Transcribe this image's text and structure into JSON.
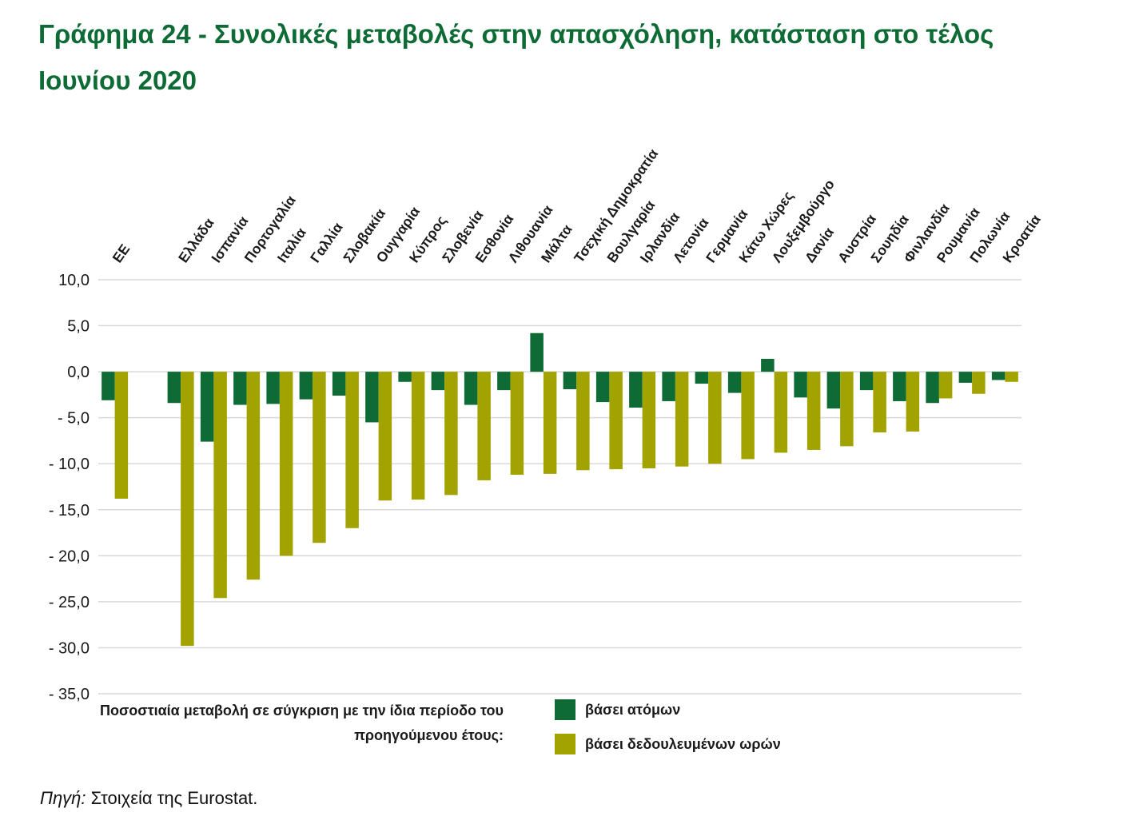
{
  "title": "Γράφημα 24 - Συνολικές μεταβολές στην απασχόληση, κατάσταση στο τέλος Ιουνίου 2020",
  "note": "Ποσοστιαία μεταβολή σε σύγκριση με την ίδια περίοδο του προηγούμενου έτους:",
  "source": {
    "label": "Πηγή:",
    "text": " Στοιχεία της Eurostat."
  },
  "colors": {
    "persons": "#0e6b35",
    "hours": "#a3a300",
    "title": "#0e6b35",
    "grid": "#d9d9d9"
  },
  "chart_data": {
    "type": "bar",
    "title": "Γράφημα 24 - Συνολικές μεταβολές στην απασχόληση, κατάσταση στο τέλος Ιουνίου 2020",
    "categories": [
      "ΕΕ",
      "Ελλάδα",
      "Ισπανία",
      "Πορτογαλία",
      "Ιταλία",
      "Γαλλία",
      "Σλοβακία",
      "Ουγγαρία",
      "Κύπρος",
      "Σλοβενία",
      "Εσθονία",
      "Λιθουανία",
      "Μάλτα",
      "Τσεχική Δημοκρατία",
      "Βουλγαρία",
      "Ιρλανδία",
      "Λετονία",
      "Γερμανία",
      "Κάτω Χώρες",
      "Λουξεμβούργο",
      "Δανία",
      "Αυστρία",
      "Σουηδία",
      "Φινλανδία",
      "Ρουμανία",
      "Πολωνία",
      "Κροατία"
    ],
    "gap_after_first": true,
    "series": [
      {
        "name": "βάσει ατόμων",
        "color": "#0e6b35",
        "values": [
          -3.1,
          -3.4,
          -7.6,
          -3.6,
          -3.5,
          -3.0,
          -2.6,
          -5.5,
          -1.1,
          -2.0,
          -3.6,
          -2.0,
          4.2,
          -1.9,
          -3.3,
          -3.9,
          -3.2,
          -1.3,
          -2.3,
          1.4,
          -2.8,
          -4.0,
          -2.0,
          -3.2,
          -3.4,
          -1.2,
          -0.9
        ]
      },
      {
        "name": "βάσει δεδουλευμένων ωρών",
        "color": "#a3a300",
        "values": [
          -13.8,
          -29.8,
          -24.6,
          -22.6,
          -20.0,
          -18.6,
          -17.0,
          -14.0,
          -13.9,
          -13.4,
          -11.8,
          -11.2,
          -11.1,
          -10.7,
          -10.6,
          -10.5,
          -10.3,
          -10.0,
          -9.5,
          -8.8,
          -8.5,
          -8.1,
          -6.6,
          -6.5,
          -2.9,
          -2.4,
          -1.1
        ]
      }
    ],
    "ylim": [
      -35,
      10
    ],
    "yticks": [
      10,
      5,
      0,
      -5,
      -10,
      -15,
      -20,
      -25,
      -30,
      -35
    ],
    "ytick_labels": [
      "10,0",
      "5,0",
      "0,0",
      "- 5,0",
      "- 10,0",
      "- 15,0",
      "- 20,0",
      "- 25,0",
      "- 30,0",
      "- 35,0"
    ],
    "grid": true,
    "category_labels_position": "top, rotated",
    "legend_position": "bottom-center"
  }
}
